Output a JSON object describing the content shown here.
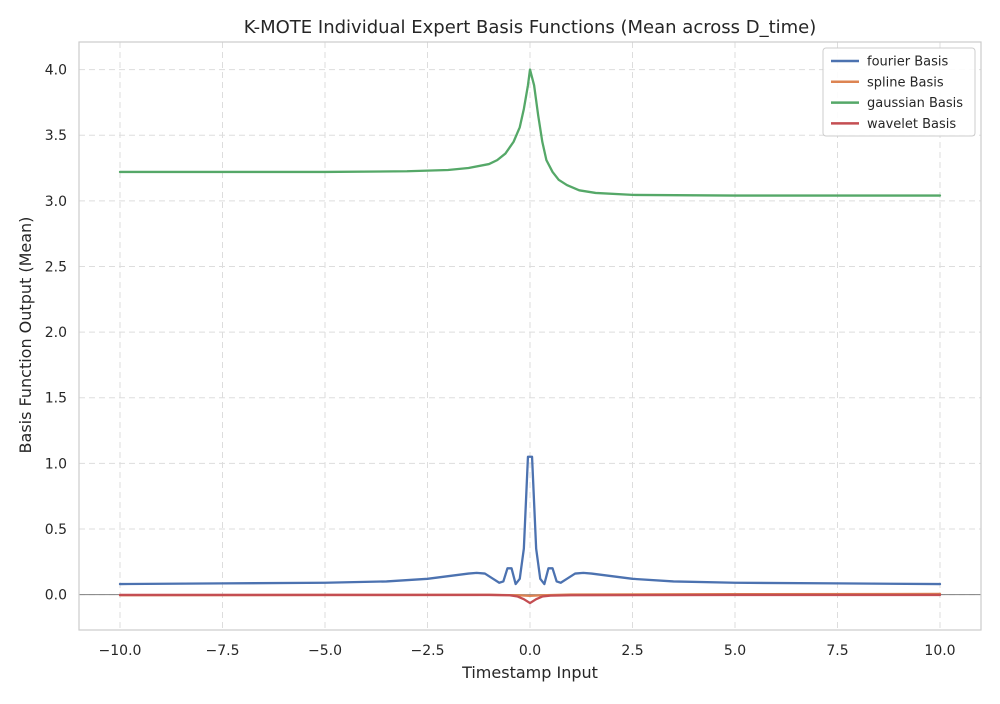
{
  "chart_data": {
    "type": "line",
    "title": "K-MOTE Individual Expert Basis Functions (Mean across D_time)",
    "xlabel": "Timestamp Input",
    "ylabel": "Basis Function Output (Mean)",
    "xlim": [
      -11.0,
      11.0
    ],
    "ylim": [
      -0.27,
      4.21
    ],
    "xticks": [
      -10.0,
      -7.5,
      -5.0,
      -2.5,
      0.0,
      2.5,
      5.0,
      7.5,
      10.0
    ],
    "xtick_labels": [
      "−10.0",
      "−7.5",
      "−5.0",
      "−2.5",
      "0.0",
      "2.5",
      "5.0",
      "7.5",
      "10.0"
    ],
    "yticks": [
      0.0,
      0.5,
      1.0,
      1.5,
      2.0,
      2.5,
      3.0,
      3.5,
      4.0
    ],
    "ytick_labels": [
      "0.0",
      "0.5",
      "1.0",
      "1.5",
      "2.0",
      "2.5",
      "3.0",
      "3.5",
      "4.0"
    ],
    "grid": true,
    "zero_line": true,
    "legend_position": "top-right",
    "series": [
      {
        "name": "fourier Basis",
        "color": "#4c72b0",
        "points": [
          [
            -10.0,
            0.08
          ],
          [
            -7.5,
            0.085
          ],
          [
            -5.0,
            0.09
          ],
          [
            -3.5,
            0.1
          ],
          [
            -2.5,
            0.12
          ],
          [
            -2.0,
            0.14
          ],
          [
            -1.5,
            0.16
          ],
          [
            -1.3,
            0.165
          ],
          [
            -1.1,
            0.16
          ],
          [
            -0.9,
            0.12
          ],
          [
            -0.75,
            0.09
          ],
          [
            -0.65,
            0.1
          ],
          [
            -0.55,
            0.2
          ],
          [
            -0.45,
            0.2
          ],
          [
            -0.35,
            0.08
          ],
          [
            -0.25,
            0.12
          ],
          [
            -0.15,
            0.35
          ],
          [
            -0.05,
            1.05
          ],
          [
            0.05,
            1.05
          ],
          [
            0.15,
            0.35
          ],
          [
            0.25,
            0.12
          ],
          [
            0.35,
            0.08
          ],
          [
            0.45,
            0.2
          ],
          [
            0.55,
            0.2
          ],
          [
            0.65,
            0.1
          ],
          [
            0.75,
            0.09
          ],
          [
            0.9,
            0.12
          ],
          [
            1.1,
            0.16
          ],
          [
            1.3,
            0.165
          ],
          [
            1.5,
            0.16
          ],
          [
            2.0,
            0.14
          ],
          [
            2.5,
            0.12
          ],
          [
            3.5,
            0.1
          ],
          [
            5.0,
            0.09
          ],
          [
            7.5,
            0.085
          ],
          [
            10.0,
            0.08
          ]
        ]
      },
      {
        "name": "spline Basis",
        "color": "#dd8452",
        "points": [
          [
            -10.0,
            -0.005
          ],
          [
            -5.0,
            -0.003
          ],
          [
            -1.0,
            -0.002
          ],
          [
            -0.3,
            -0.005
          ],
          [
            0.0,
            -0.01
          ],
          [
            0.3,
            -0.005
          ],
          [
            1.0,
            0.0
          ],
          [
            5.0,
            0.003
          ],
          [
            10.0,
            0.005
          ]
        ]
      },
      {
        "name": "gaussian Basis",
        "color": "#55a868",
        "points": [
          [
            -10.0,
            3.22
          ],
          [
            -7.5,
            3.22
          ],
          [
            -5.0,
            3.22
          ],
          [
            -3.0,
            3.225
          ],
          [
            -2.0,
            3.235
          ],
          [
            -1.5,
            3.25
          ],
          [
            -1.0,
            3.28
          ],
          [
            -0.8,
            3.31
          ],
          [
            -0.6,
            3.36
          ],
          [
            -0.4,
            3.45
          ],
          [
            -0.25,
            3.56
          ],
          [
            -0.15,
            3.7
          ],
          [
            -0.05,
            3.88
          ],
          [
            0.0,
            4.0
          ],
          [
            0.1,
            3.88
          ],
          [
            0.2,
            3.65
          ],
          [
            0.3,
            3.45
          ],
          [
            0.4,
            3.31
          ],
          [
            0.55,
            3.22
          ],
          [
            0.7,
            3.16
          ],
          [
            0.9,
            3.12
          ],
          [
            1.2,
            3.08
          ],
          [
            1.6,
            3.06
          ],
          [
            2.5,
            3.045
          ],
          [
            5.0,
            3.04
          ],
          [
            7.5,
            3.04
          ],
          [
            10.0,
            3.04
          ]
        ]
      },
      {
        "name": "wavelet Basis",
        "color": "#c44e52",
        "points": [
          [
            -10.0,
            -0.003
          ],
          [
            -5.0,
            -0.003
          ],
          [
            -1.0,
            -0.003
          ],
          [
            -0.5,
            -0.005
          ],
          [
            -0.3,
            -0.015
          ],
          [
            -0.15,
            -0.035
          ],
          [
            0.0,
            -0.065
          ],
          [
            0.15,
            -0.035
          ],
          [
            0.3,
            -0.015
          ],
          [
            0.5,
            -0.008
          ],
          [
            1.0,
            -0.005
          ],
          [
            5.0,
            -0.003
          ],
          [
            10.0,
            -0.003
          ]
        ]
      }
    ]
  }
}
